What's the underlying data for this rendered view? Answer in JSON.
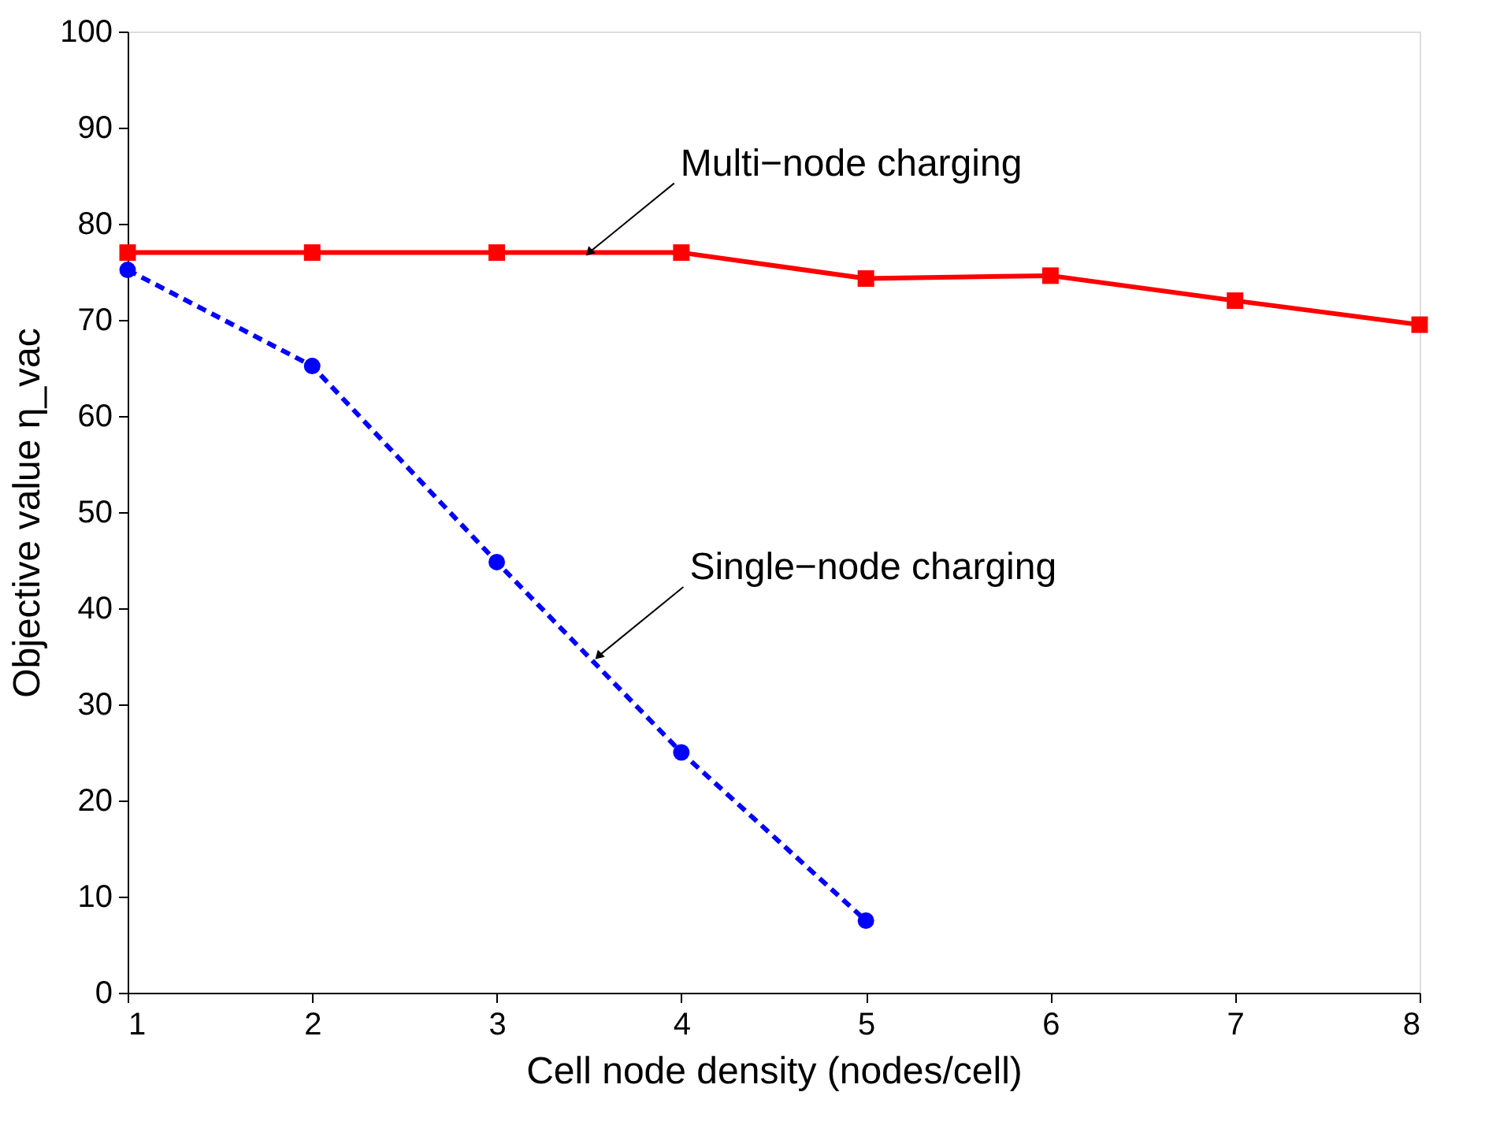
{
  "chart_data": {
    "type": "line",
    "xlabel": "Cell node density (nodes/cell)",
    "ylabel": "Objective value η_vac",
    "xlim": [
      1,
      8
    ],
    "ylim": [
      0,
      100
    ],
    "xticks": [
      1,
      2,
      3,
      4,
      5,
      6,
      7,
      8
    ],
    "yticks": [
      0,
      10,
      20,
      30,
      40,
      50,
      60,
      70,
      80,
      90,
      100
    ],
    "grid": false,
    "series": [
      {
        "color": "#ff0000",
        "marker": "square",
        "line_style": "solid",
        "x": [
          1,
          2,
          3,
          4,
          5,
          6,
          7,
          8
        ],
        "values": [
          77.0,
          77.0,
          77.0,
          77.0,
          74.3,
          74.6,
          72.0,
          69.5
        ]
      },
      {
        "color": "#0000ff",
        "marker": "circle",
        "line_style": "dashed",
        "x": [
          1,
          2,
          3,
          4,
          5
        ],
        "values": [
          75.2,
          65.2,
          44.8,
          25.0,
          7.5
        ]
      }
    ],
    "annotations": [
      {
        "text": "Multi−node charging",
        "x": 3.5,
        "y": 77.0
      },
      {
        "text": "Single−node charging",
        "x": 3.55,
        "y": 35.0
      }
    ]
  }
}
